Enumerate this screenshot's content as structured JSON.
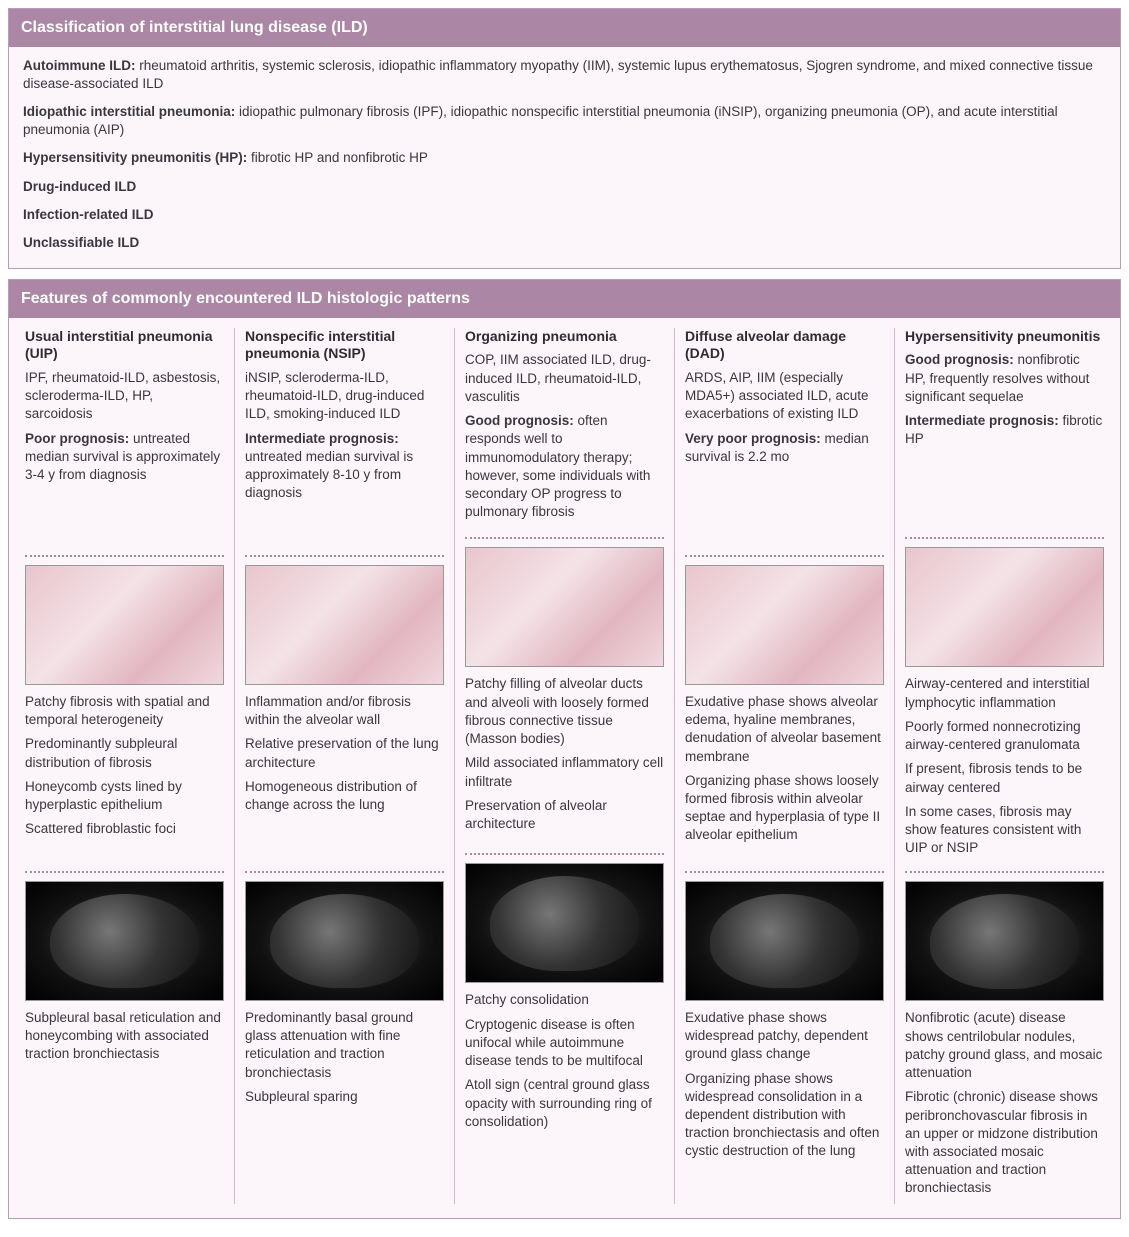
{
  "colors": {
    "header_bg": "#ab87a5",
    "header_text": "#ffffff",
    "panel_bg": "#fcf6fa",
    "panel_border": "#b79cb3",
    "col_divider": "#cdb9cb",
    "dot_rule": "#ab87a5",
    "body_text": "#3a3640"
  },
  "section1": {
    "title": "Classification of interstitial lung disease (ILD)",
    "items": [
      {
        "term": "Autoimmune ILD:",
        "desc": " rheumatoid arthritis, systemic sclerosis, idiopathic inflammatory myopathy (IIM), systemic lupus erythematosus, Sjogren syndrome, and mixed connective tissue disease-associated ILD"
      },
      {
        "term": "Idiopathic interstitial pneumonia:",
        "desc": " idiopathic pulmonary fibrosis (IPF), idiopathic nonspecific interstitial pneumonia (iNSIP), organizing pneumonia (OP), and acute interstitial pneumonia (AIP)"
      },
      {
        "term": "Hypersensitivity pneumonitis (HP):",
        "desc": " fibrotic HP and nonfibrotic HP"
      },
      {
        "term": "Drug-induced ILD",
        "desc": ""
      },
      {
        "term": "Infection-related ILD",
        "desc": ""
      },
      {
        "term": "Unclassifiable ILD",
        "desc": ""
      }
    ]
  },
  "section2": {
    "title": "Features of commonly encountered ILD histologic patterns",
    "columns": [
      {
        "title": "Usual interstitial pneumonia (UIP)",
        "intro": [
          {
            "strong": "",
            "text": "IPF, rheumatoid-ILD, asbestosis, scleroderma-ILD, HP, sarcoidosis"
          },
          {
            "strong": "Poor prognosis:",
            "text": " untreated median survival is approximately 3-4 y from diagnosis"
          }
        ],
        "histo_findings": [
          "Patchy fibrosis with spatial and temporal heterogeneity",
          "Predominantly subpleural distribution of fibrosis",
          "Honeycomb cysts lined by hyperplastic epithelium",
          "Scattered fibroblastic foci"
        ],
        "ct_findings": [
          "Subpleural basal reticulation and honeycombing with associated traction bronchiectasis"
        ]
      },
      {
        "title": "Nonspecific interstitial pneumonia (NSIP)",
        "intro": [
          {
            "strong": "",
            "text": "iNSIP, scleroderma-ILD, rheumatoid-ILD, drug-induced ILD, smoking-induced ILD"
          },
          {
            "strong": "Intermediate prognosis:",
            "text": " untreated median survival is approximately 8-10 y from diagnosis"
          }
        ],
        "histo_findings": [
          "Inflammation and/or fibrosis within the alveolar wall",
          "Relative preservation of the lung architecture",
          "Homogeneous distribution of change across the lung"
        ],
        "ct_findings": [
          "Predominantly basal ground glass attenuation with fine reticulation and traction bronchiectasis",
          "Subpleural sparing"
        ]
      },
      {
        "title": "Organizing pneumonia",
        "intro": [
          {
            "strong": "",
            "text": "COP, IIM associated ILD, drug-induced ILD, rheumatoid-ILD, vasculitis"
          },
          {
            "strong": "Good prognosis:",
            "text": " often responds well to immunomodulatory therapy; however, some individuals with secondary OP progress to pulmonary fibrosis"
          }
        ],
        "histo_findings": [
          "Patchy filling of alveolar ducts and alveoli with loosely formed fibrous connective tissue (Masson bodies)",
          "Mild associated inflammatory cell infiltrate",
          "Preservation of alveolar architecture"
        ],
        "ct_findings": [
          "Patchy consolidation",
          "Cryptogenic disease is often unifocal while autoimmune disease tends to be multifocal",
          "Atoll sign (central ground glass opacity with surrounding ring of consolidation)"
        ]
      },
      {
        "title": "Diffuse alveolar damage (DAD)",
        "intro": [
          {
            "strong": "",
            "text": "ARDS, AIP, IIM (especially MDA5+) associated ILD, acute exacerbations of existing ILD"
          },
          {
            "strong": "Very poor prognosis:",
            "text": " median survival is 2.2 mo"
          }
        ],
        "histo_findings": [
          "Exudative phase shows alveolar edema, hyaline membranes, denudation of alveolar basement membrane",
          "Organizing phase shows loosely formed fibrosis within alveolar septae and hyperplasia of type II alveolar epithelium"
        ],
        "ct_findings": [
          "Exudative phase shows widespread patchy, dependent ground glass change",
          "Organizing phase shows widespread consolidation in a dependent distribution with traction bronchiectasis and often cystic destruction of the lung"
        ]
      },
      {
        "title": "Hypersensitivity pneumonitis",
        "intro": [
          {
            "strong": "Good prognosis:",
            "text": " nonfibrotic HP, frequently resolves without significant sequelae"
          },
          {
            "strong": "Intermediate prognosis:",
            "text": " fibrotic HP"
          }
        ],
        "histo_findings": [
          "Airway-centered and interstitial lymphocytic inflammation",
          "Poorly formed nonnecrotizing airway-centered granulomata",
          "If present, fibrosis tends to be airway centered",
          "In some cases, fibrosis may show features consistent with UIP or NSIP"
        ],
        "ct_findings": [
          "Nonfibrotic (acute) disease shows centrilobular nodules, patchy ground glass, and mosaic attenuation",
          "Fibrotic (chronic) disease shows peribronchovascular fibrosis in an upper or midzone distribution with associated mosaic attenuation and traction bronchiectasis"
        ]
      }
    ]
  }
}
